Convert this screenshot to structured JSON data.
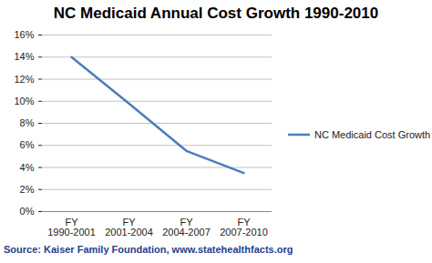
{
  "chart_data": {
    "type": "line",
    "title": "NC Medicaid Annual Cost Growth 1990-2010",
    "caption": "Source:  Kaiser Family Foundation, www.statehealthfacts.org",
    "categories": [
      "FY 1990-2001",
      "FY 2001-2004",
      "FY 2004-2007",
      "FY 2007-2010"
    ],
    "series": [
      {
        "name": "NC Medicaid Cost Growth",
        "color": "#4a7ebb",
        "values": [
          14,
          9.8,
          5.5,
          3.5
        ]
      }
    ],
    "ylim": [
      0,
      16
    ],
    "yticks": [
      {
        "value": 0,
        "label": "0%"
      },
      {
        "value": 2,
        "label": "2%"
      },
      {
        "value": 4,
        "label": "4%"
      },
      {
        "value": 6,
        "label": "6%"
      },
      {
        "value": 8,
        "label": "8%"
      },
      {
        "value": 10,
        "label": "10%"
      },
      {
        "value": 12,
        "label": "12%"
      },
      {
        "value": 14,
        "label": "14%"
      },
      {
        "value": 16,
        "label": "16%"
      }
    ],
    "grid": true,
    "legend": "right"
  }
}
